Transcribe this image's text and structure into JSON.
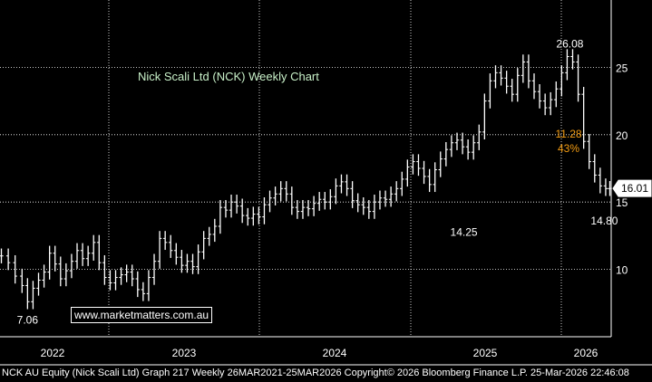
{
  "chart_data": {
    "type": "candlestick",
    "title": "Nick Scali Ltd (NCK) Weekly Chart",
    "xlabel": "",
    "ylabel": "",
    "ylim": [
      5,
      30
    ],
    "xlim": [
      2021.79,
      2026.23
    ],
    "grid": true,
    "y_ticks": [
      10,
      15,
      20,
      25
    ],
    "x_tick_labels": [
      "2022",
      "2023",
      "2024",
      "2025",
      "2026"
    ],
    "series": [
      {
        "values": [
          [
            2021.8,
            11.0
          ],
          [
            2021.85,
            10.5
          ],
          [
            2021.9,
            9.5
          ],
          [
            2021.95,
            8.8
          ],
          [
            2021.99,
            7.6
          ],
          [
            2022.03,
            8.6
          ],
          [
            2022.07,
            9.2
          ],
          [
            2022.11,
            9.8
          ],
          [
            2022.15,
            11.2
          ],
          [
            2022.19,
            10.4
          ],
          [
            2022.23,
            9.3
          ],
          [
            2022.27,
            9.9
          ],
          [
            2022.31,
            10.6
          ],
          [
            2022.35,
            11.4
          ],
          [
            2022.39,
            10.8
          ],
          [
            2022.43,
            11.2
          ],
          [
            2022.47,
            12.0
          ],
          [
            2022.51,
            10.5
          ],
          [
            2022.55,
            9.4
          ],
          [
            2022.59,
            9.0
          ],
          [
            2022.63,
            9.4
          ],
          [
            2022.67,
            9.6
          ],
          [
            2022.71,
            9.8
          ],
          [
            2022.75,
            9.3
          ],
          [
            2022.79,
            8.5
          ],
          [
            2022.83,
            8.2
          ],
          [
            2022.87,
            9.4
          ],
          [
            2022.91,
            10.6
          ],
          [
            2022.95,
            12.3
          ],
          [
            2022.99,
            12.0
          ],
          [
            2023.03,
            11.4
          ],
          [
            2023.07,
            10.9
          ],
          [
            2023.11,
            10.3
          ],
          [
            2023.15,
            10.6
          ],
          [
            2023.19,
            10.2
          ],
          [
            2023.23,
            11.3
          ],
          [
            2023.27,
            12.3
          ],
          [
            2023.31,
            12.6
          ],
          [
            2023.35,
            13.2
          ],
          [
            2023.39,
            14.6
          ],
          [
            2023.43,
            14.4
          ],
          [
            2023.47,
            15.0
          ],
          [
            2023.51,
            14.7
          ],
          [
            2023.55,
            14.0
          ],
          [
            2023.59,
            13.8
          ],
          [
            2023.63,
            14.1
          ],
          [
            2023.67,
            13.9
          ],
          [
            2023.71,
            14.8
          ],
          [
            2023.75,
            15.3
          ],
          [
            2023.79,
            15.6
          ],
          [
            2023.83,
            16.0
          ],
          [
            2023.87,
            15.6
          ],
          [
            2023.91,
            14.6
          ],
          [
            2023.95,
            14.3
          ],
          [
            2023.99,
            14.6
          ],
          [
            2024.03,
            14.5
          ],
          [
            2024.07,
            14.9
          ],
          [
            2024.11,
            15.2
          ],
          [
            2024.15,
            15.0
          ],
          [
            2024.19,
            15.4
          ],
          [
            2024.23,
            16.2
          ],
          [
            2024.27,
            16.5
          ],
          [
            2024.31,
            16.0
          ],
          [
            2024.35,
            15.1
          ],
          [
            2024.39,
            14.8
          ],
          [
            2024.43,
            14.6
          ],
          [
            2024.47,
            14.3
          ],
          [
            2024.51,
            15.0
          ],
          [
            2024.55,
            15.3
          ],
          [
            2024.59,
            15.2
          ],
          [
            2024.63,
            15.6
          ],
          [
            2024.67,
            16.0
          ],
          [
            2024.71,
            16.7
          ],
          [
            2024.75,
            17.6
          ],
          [
            2024.79,
            18.0
          ],
          [
            2024.83,
            17.5
          ],
          [
            2024.87,
            16.9
          ],
          [
            2024.91,
            16.3
          ],
          [
            2024.95,
            17.4
          ],
          [
            2024.99,
            18.2
          ],
          [
            2025.03,
            18.9
          ],
          [
            2025.07,
            19.4
          ],
          [
            2025.11,
            19.6
          ],
          [
            2025.15,
            19.1
          ],
          [
            2025.19,
            18.7
          ],
          [
            2025.23,
            19.4
          ],
          [
            2025.27,
            20.2
          ],
          [
            2025.31,
            22.5
          ],
          [
            2025.35,
            24.0
          ],
          [
            2025.39,
            24.6
          ],
          [
            2025.43,
            24.2
          ],
          [
            2025.47,
            23.6
          ],
          [
            2025.51,
            23.0
          ],
          [
            2025.55,
            24.4
          ],
          [
            2025.59,
            25.4
          ],
          [
            2025.63,
            24.0
          ],
          [
            2025.67,
            23.2
          ],
          [
            2025.71,
            22.5
          ],
          [
            2025.75,
            22.0
          ],
          [
            2025.79,
            22.6
          ],
          [
            2025.83,
            23.4
          ],
          [
            2025.87,
            24.6
          ],
          [
            2025.91,
            25.8
          ],
          [
            2025.95,
            25.4
          ],
          [
            2025.99,
            23.0
          ],
          [
            2026.03,
            19.5
          ],
          [
            2026.07,
            18.0
          ],
          [
            2026.11,
            17.0
          ],
          [
            2026.15,
            16.2
          ],
          [
            2026.19,
            16.0
          ],
          [
            2026.22,
            16.01
          ]
        ]
      }
    ],
    "annotations": [
      {
        "x": 2021.99,
        "y": 7.06,
        "text": "7.06"
      },
      {
        "x": 2025.16,
        "y": 14.25,
        "text": "14.25"
      },
      {
        "x": 2025.91,
        "y": 26.08,
        "text": "26.08"
      },
      {
        "x": 2026.18,
        "y": 14.8,
        "text": "14.80"
      },
      {
        "x": 2025.96,
        "y": 19.8,
        "text": "11.28"
      },
      {
        "x": 2025.96,
        "y": 18.7,
        "text": "43%"
      }
    ],
    "last_price_label": "16.01",
    "colors": {
      "background": "#000000",
      "bars": "#ffffff",
      "grid": "#ffffff",
      "title": "#c8f0c8",
      "drop": "#f39c12"
    }
  },
  "watermark": "www.marketmatters.com.au",
  "title": "Nick Scali Ltd (NCK) Weekly Chart",
  "footer": "NCK AU Equity (Nick Scali Ltd) Graph 217 Weekly 26MAR2021-25MAR2026 Copyright© 2026 Bloomberg Finance L.P. 25-Mar-2026 22:46:08"
}
